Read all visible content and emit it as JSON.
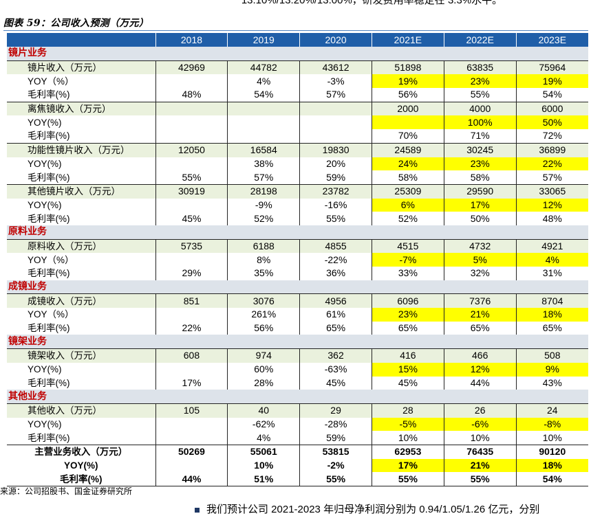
{
  "header_clip": "13.10%/13.20%/13.00%，研发费用率稳定在 3.3%水平。",
  "figure_title": "图表 59：公司收入预测（万元）",
  "columns": [
    "",
    "2018",
    "2019",
    "2020",
    "2021E",
    "2022E",
    "2023E"
  ],
  "rows": [
    {
      "kind": "sec",
      "label": "镜片业务"
    },
    {
      "kind": "rev",
      "label": "镜片收入（万元）",
      "cells": [
        "42969",
        "44782",
        "43612",
        "51898",
        "63835",
        "75964"
      ],
      "hl": [
        false,
        false,
        false,
        false,
        false,
        false
      ]
    },
    {
      "kind": "plain",
      "label": "YOY（%）",
      "cells": [
        "",
        "4%",
        "-3%",
        "19%",
        "23%",
        "19%"
      ],
      "hl": [
        false,
        false,
        false,
        true,
        true,
        true
      ]
    },
    {
      "kind": "plain",
      "label": "毛利率(%)",
      "cells": [
        "48%",
        "54%",
        "57%",
        "56%",
        "55%",
        "54%"
      ],
      "hl": [
        false,
        false,
        false,
        false,
        false,
        false
      ]
    },
    {
      "kind": "rev",
      "label": "离焦镜收入（万元）",
      "cells": [
        "",
        "",
        "",
        "2000",
        "4000",
        "6000"
      ],
      "hl": [
        false,
        false,
        false,
        false,
        false,
        false
      ]
    },
    {
      "kind": "plain",
      "label": "YOY(%)",
      "cells": [
        "",
        "",
        "",
        "",
        "100%",
        "50%"
      ],
      "hl": [
        false,
        false,
        false,
        true,
        true,
        true
      ]
    },
    {
      "kind": "plain",
      "label": "毛利率(%)",
      "cells": [
        "",
        "",
        "",
        "70%",
        "71%",
        "72%"
      ],
      "hl": [
        false,
        false,
        false,
        false,
        false,
        false
      ]
    },
    {
      "kind": "rev",
      "label": "功能性镜片收入（万元）",
      "cells": [
        "12050",
        "16584",
        "19830",
        "24589",
        "30245",
        "36899"
      ],
      "hl": [
        false,
        false,
        false,
        false,
        false,
        false
      ]
    },
    {
      "kind": "plain",
      "label": "YOY(%)",
      "cells": [
        "",
        "38%",
        "20%",
        "24%",
        "23%",
        "22%"
      ],
      "hl": [
        false,
        false,
        false,
        true,
        true,
        true
      ]
    },
    {
      "kind": "plain",
      "label": "毛利率(%)",
      "cells": [
        "55%",
        "57%",
        "59%",
        "58%",
        "58%",
        "57%"
      ],
      "hl": [
        false,
        false,
        false,
        false,
        false,
        false
      ]
    },
    {
      "kind": "rev",
      "label": "其他镜片收入（万元）",
      "cells": [
        "30919",
        "28198",
        "23782",
        "25309",
        "29590",
        "33065"
      ],
      "hl": [
        false,
        false,
        false,
        false,
        false,
        false
      ]
    },
    {
      "kind": "plain",
      "label": "YOY(%)",
      "cells": [
        "",
        "-9%",
        "-16%",
        "6%",
        "17%",
        "12%"
      ],
      "hl": [
        false,
        false,
        false,
        true,
        true,
        true
      ]
    },
    {
      "kind": "plain",
      "label": "毛利率(%)",
      "cells": [
        "45%",
        "52%",
        "55%",
        "52%",
        "50%",
        "48%"
      ],
      "hl": [
        false,
        false,
        false,
        false,
        false,
        false
      ]
    },
    {
      "kind": "sec",
      "label": "原料业务"
    },
    {
      "kind": "rev",
      "label": "原料收入（万元）",
      "cells": [
        "5735",
        "6188",
        "4855",
        "4515",
        "4732",
        "4921"
      ],
      "hl": [
        false,
        false,
        false,
        false,
        false,
        false
      ]
    },
    {
      "kind": "plain",
      "label": "YOY（%）",
      "cells": [
        "",
        "8%",
        "-22%",
        "-7%",
        "5%",
        "4%"
      ],
      "hl": [
        false,
        false,
        false,
        true,
        true,
        true
      ]
    },
    {
      "kind": "plain",
      "label": "毛利率(%)",
      "cells": [
        "29%",
        "35%",
        "36%",
        "33%",
        "32%",
        "31%"
      ],
      "hl": [
        false,
        false,
        false,
        false,
        false,
        false
      ]
    },
    {
      "kind": "sec",
      "label": "成镜业务"
    },
    {
      "kind": "rev",
      "label": "成镜收入（万元）",
      "cells": [
        "851",
        "3076",
        "4956",
        "6096",
        "7376",
        "8704"
      ],
      "hl": [
        false,
        false,
        false,
        false,
        false,
        false
      ]
    },
    {
      "kind": "plain",
      "label": "YOY（%）",
      "cells": [
        "",
        "261%",
        "61%",
        "23%",
        "21%",
        "18%"
      ],
      "hl": [
        false,
        false,
        false,
        true,
        true,
        true
      ]
    },
    {
      "kind": "plain",
      "label": "毛利率(%)",
      "cells": [
        "22%",
        "56%",
        "65%",
        "65%",
        "65%",
        "65%"
      ],
      "hl": [
        false,
        false,
        false,
        false,
        false,
        false
      ]
    },
    {
      "kind": "sec",
      "label": "镜架业务"
    },
    {
      "kind": "rev",
      "label": "镜架收入（万元）",
      "cells": [
        "608",
        "974",
        "362",
        "416",
        "466",
        "508"
      ],
      "hl": [
        false,
        false,
        false,
        false,
        false,
        false
      ]
    },
    {
      "kind": "plain",
      "label": "YOY(%)",
      "cells": [
        "",
        "60%",
        "-63%",
        "15%",
        "12%",
        "9%"
      ],
      "hl": [
        false,
        false,
        false,
        true,
        true,
        true
      ]
    },
    {
      "kind": "plain",
      "label": "毛利率(%)",
      "cells": [
        "17%",
        "28%",
        "45%",
        "45%",
        "44%",
        "43%"
      ],
      "hl": [
        false,
        false,
        false,
        false,
        false,
        false
      ]
    },
    {
      "kind": "sec",
      "label": "其他业务"
    },
    {
      "kind": "rev",
      "label": "其他收入（万元）",
      "cells": [
        "105",
        "40",
        "29",
        "28",
        "26",
        "24"
      ],
      "hl": [
        false,
        false,
        false,
        false,
        false,
        false
      ]
    },
    {
      "kind": "plain",
      "label": "YOY(%)",
      "cells": [
        "",
        "-62%",
        "-28%",
        "-5%",
        "-6%",
        "-8%"
      ],
      "hl": [
        false,
        false,
        false,
        true,
        true,
        true
      ]
    },
    {
      "kind": "plain",
      "label": "毛利率(%)",
      "cells": [
        "",
        "4%",
        "59%",
        "10%",
        "10%",
        "10%"
      ],
      "hl": [
        false,
        false,
        false,
        false,
        false,
        false
      ]
    },
    {
      "kind": "total first",
      "label": "主营业务收入（万元）",
      "cells": [
        "50269",
        "55061",
        "53815",
        "62953",
        "76435",
        "90120"
      ],
      "hl": [
        false,
        false,
        false,
        false,
        false,
        false
      ]
    },
    {
      "kind": "total",
      "label": "YOY(%)",
      "cells": [
        "",
        "10%",
        "-2%",
        "17%",
        "21%",
        "18%"
      ],
      "hl": [
        false,
        false,
        false,
        true,
        true,
        true
      ]
    },
    {
      "kind": "total last",
      "label": "毛利率(%)",
      "cells": [
        "44%",
        "51%",
        "55%",
        "55%",
        "55%",
        "54%"
      ],
      "hl": [
        false,
        false,
        false,
        false,
        false,
        false
      ]
    }
  ],
  "source": "来源：公司招股书、国金证券研究所",
  "footer_clip": "我们预计公司 2021-2023 年归母净利润分别为 0.94/1.05/1.26 亿元，分别"
}
